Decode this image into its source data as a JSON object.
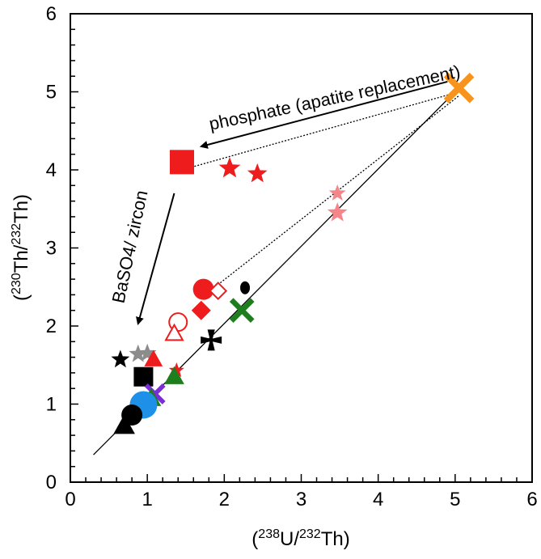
{
  "chart_data": {
    "type": "scatter",
    "xlabel": {
      "pre": "(",
      "sup1": "238",
      "mid": "U/",
      "sup2": "232",
      "post": "Th)"
    },
    "ylabel": {
      "pre": "(",
      "sup1": "230",
      "mid": "Th/",
      "sup2": "232",
      "post": "Th)"
    },
    "xlim": [
      0,
      6
    ],
    "ylim": [
      0,
      6
    ],
    "xticks": [
      "0",
      "1",
      "2",
      "3",
      "4",
      "5",
      "6"
    ],
    "yticks": [
      "0",
      "1",
      "2",
      "3",
      "4",
      "5",
      "6"
    ],
    "grid": false,
    "legend": "none",
    "equiline": {
      "x": [
        0.3,
        5.05
      ],
      "y": [
        0.35,
        5.05
      ]
    },
    "mixing_lines": [
      {
        "x": [
          1.45,
          5.05
        ],
        "y": [
          4.0,
          5.0
        ]
      },
      {
        "x": [
          1.75,
          5.05
        ],
        "y": [
          2.4,
          4.95
        ]
      }
    ],
    "annotations": [
      {
        "text": "phosphate (apatite replacement)",
        "x": 3.45,
        "y": 4.85,
        "rotation": -12
      },
      {
        "text": "BaSO4/ zircon",
        "x": 0.85,
        "y": 3.0,
        "rotation": -78
      }
    ],
    "arrows": [
      {
        "x1": 4.9,
        "y1": 5.13,
        "x2": 1.7,
        "y2": 4.3
      },
      {
        "x1": 1.35,
        "y1": 3.7,
        "x2": 0.88,
        "y2": 2.03
      }
    ],
    "points": [
      {
        "x": 5.05,
        "y": 5.05,
        "marker": "x",
        "color": "#f7941d",
        "size": 16
      },
      {
        "x": 1.45,
        "y": 4.1,
        "marker": "square",
        "color": "#ee1c1c",
        "size": 15
      },
      {
        "x": 2.07,
        "y": 4.02,
        "marker": "star",
        "color": "#ee1c1c",
        "size": 14
      },
      {
        "x": 2.43,
        "y": 3.95,
        "marker": "star",
        "color": "#ee1c1c",
        "size": 13
      },
      {
        "x": 3.47,
        "y": 3.7,
        "marker": "star",
        "color": "#f4868a",
        "size": 11
      },
      {
        "x": 3.47,
        "y": 3.45,
        "marker": "star",
        "color": "#f4868a",
        "size": 13
      },
      {
        "x": 1.73,
        "y": 2.47,
        "marker": "circle",
        "color": "#ee1c1c",
        "size": 13
      },
      {
        "x": 1.92,
        "y": 2.45,
        "marker": "diamond-open",
        "color": "#ee1c1c",
        "size": 10
      },
      {
        "x": 1.7,
        "y": 2.2,
        "marker": "diamond",
        "color": "#ee1c1c",
        "size": 12
      },
      {
        "x": 2.27,
        "y": 2.49,
        "marker": "ellipse",
        "color": "#000000",
        "size": 8
      },
      {
        "x": 2.23,
        "y": 2.2,
        "marker": "x",
        "color": "#1e7e1e",
        "size": 13
      },
      {
        "x": 1.4,
        "y": 2.05,
        "marker": "circle-open",
        "color": "#ee1c1c",
        "size": 11
      },
      {
        "x": 1.35,
        "y": 1.9,
        "marker": "triangle-open",
        "color": "#ee1c1c",
        "size": 11
      },
      {
        "x": 1.83,
        "y": 1.82,
        "marker": "cross",
        "color": "#000000",
        "size": 13
      },
      {
        "x": 0.65,
        "y": 1.57,
        "marker": "star",
        "color": "#000000",
        "size": 12
      },
      {
        "x": 0.88,
        "y": 1.64,
        "marker": "star",
        "color": "#8c8c8c",
        "size": 12
      },
      {
        "x": 1.0,
        "y": 1.65,
        "marker": "star",
        "color": "#8c8c8c",
        "size": 12
      },
      {
        "x": 1.08,
        "y": 1.57,
        "marker": "triangle",
        "color": "#ee1c1c",
        "size": 12
      },
      {
        "x": 0.95,
        "y": 1.35,
        "marker": "square",
        "color": "#000000",
        "size": 12
      },
      {
        "x": 1.38,
        "y": 1.43,
        "marker": "star",
        "color": "#ee1c1c",
        "size": 10
      },
      {
        "x": 1.35,
        "y": 1.35,
        "marker": "triangle",
        "color": "#1e7e1e",
        "size": 13
      },
      {
        "x": 1.1,
        "y": 1.13,
        "marker": "x",
        "color": "#7a2fd4",
        "size": 11
      },
      {
        "x": 1.05,
        "y": 1.07,
        "marker": "triangle",
        "color": "#1e7e1e",
        "size": 13
      },
      {
        "x": 0.95,
        "y": 0.99,
        "marker": "circle",
        "color": "#1e90e8",
        "size": 17
      },
      {
        "x": 0.8,
        "y": 0.86,
        "marker": "circle",
        "color": "#000000",
        "size": 13
      },
      {
        "x": 0.7,
        "y": 0.72,
        "marker": "triangle",
        "color": "#000000",
        "size": 14
      }
    ]
  }
}
